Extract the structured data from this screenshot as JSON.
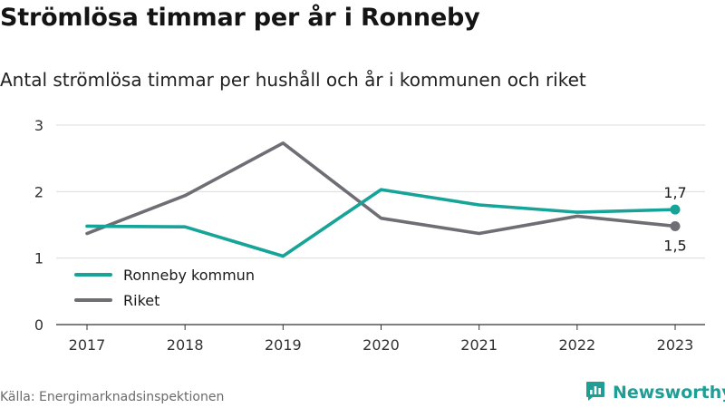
{
  "title": "Strömlösa timmar per år i Ronneby",
  "subtitle": "Antal strömlösa timmar per hushåll och år i kommunen och riket",
  "source": "Källa: Energimarknadsinspektionen",
  "brand": {
    "name": "Newsworthy",
    "color": "#1f9e96",
    "icon": "newsworthy-logo-icon"
  },
  "chart_data": {
    "type": "line",
    "title": "",
    "xlabel": "",
    "ylabel": "",
    "categories": [
      "2017",
      "2018",
      "2019",
      "2020",
      "2021",
      "2022",
      "2023"
    ],
    "ylim": [
      0,
      3
    ],
    "yticks": [
      0,
      1,
      2,
      3
    ],
    "grid": true,
    "legend_position": "lower-left",
    "series": [
      {
        "name": "Ronneby kommun",
        "color": "#16a398",
        "values": [
          1.48,
          1.47,
          1.03,
          2.03,
          1.8,
          1.69,
          1.73
        ],
        "end_label": "1,7"
      },
      {
        "name": "Riket",
        "color": "#6f6e74",
        "values": [
          1.37,
          1.94,
          2.73,
          1.6,
          1.37,
          1.63,
          1.48
        ],
        "end_label": "1,5"
      }
    ]
  }
}
